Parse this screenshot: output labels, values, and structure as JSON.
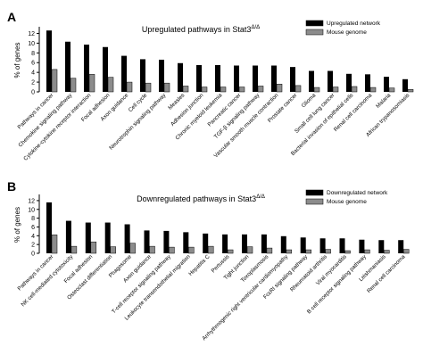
{
  "chart_data": [
    {
      "type": "bar",
      "panel_label": "A",
      "title": "Upregulated pathways in Stat3",
      "title_superscript": "Δ/Δ",
      "ylabel": "% of genes",
      "xlabel": "",
      "ylim": [
        0,
        13
      ],
      "yticks": [
        "0",
        "2",
        "4",
        "6",
        "8",
        "10",
        "12"
      ],
      "legend_position": "top-right",
      "colors": {
        "network": "#000000",
        "genome": "#8c8c8c"
      },
      "categories": [
        "Pathways in cancer",
        "Chemokine signaling pathway",
        "Cytokine-cytokine receptor interaction",
        "Focal adhesion",
        "Axon guidance",
        "Cell cycle",
        "Neurotrophin signaling pathway",
        "Measles",
        "Adhesion junction",
        "Chronic myeloid leukemia",
        "Pancreatic cancer",
        "TGF-β signaling pathway",
        "Vascular smooth muscle contraction",
        "Prostate cancer",
        "Glioma",
        "Small cell lung cancer",
        "Bacterial invasion of epithelial cells",
        "Renal cell carcinoma",
        "Malaria",
        "African trypanosomiasis"
      ],
      "series": [
        {
          "name": "Upregulated network",
          "values": [
            12.6,
            10.3,
            9.7,
            9.2,
            7.4,
            6.7,
            6.6,
            5.9,
            5.5,
            5.5,
            5.4,
            5.4,
            5.4,
            5.1,
            4.3,
            4.3,
            3.7,
            3.6,
            3.1,
            2.6
          ]
        },
        {
          "name": "Mouse genome",
          "values": [
            4.6,
            2.8,
            3.6,
            3.0,
            2.0,
            1.8,
            1.8,
            1.2,
            1.0,
            1.0,
            1.0,
            1.2,
            1.6,
            1.3,
            0.9,
            1.0,
            1.1,
            0.9,
            0.8,
            0.5
          ]
        }
      ]
    },
    {
      "type": "bar",
      "panel_label": "B",
      "title": "Downregulated pathways in Stat3",
      "title_superscript": "Δ/Δ",
      "ylabel": "% of genes",
      "xlabel": "",
      "ylim": [
        0,
        13
      ],
      "yticks": [
        "0",
        "2",
        "4",
        "6",
        "8",
        "10",
        "12"
      ],
      "legend_position": "top-right",
      "colors": {
        "network": "#000000",
        "genome": "#8c8c8c"
      },
      "categories": [
        "Pathways in cancer",
        "NK cell-mediated cytotoxicity",
        "Focal adhesion",
        "Osteoclast differentiation",
        "Phagosome",
        "Axon guidance",
        "T-cell receptor signaling pathway",
        "Leukocyte transendothelial migration",
        "Hepatitis C",
        "Pertussis",
        "Tight junction",
        "Toxoplasmosis",
        "Arrhythmogenic right ventricular cardiomyopathy",
        "FcεRI signaling pathway",
        "Rheumatoid arthritis",
        "Viral myocarditis",
        "B cell receptor signaling pathway",
        "Leishmaniasis",
        "Renal cell carcinoma"
      ],
      "series": [
        {
          "name": "Downregulated network",
          "values": [
            11.6,
            7.4,
            7.0,
            7.0,
            6.6,
            5.2,
            5.1,
            4.8,
            4.5,
            4.3,
            4.3,
            4.3,
            3.9,
            3.6,
            3.4,
            3.4,
            3.1,
            3.0,
            3.0
          ]
        },
        {
          "name": "Mouse genome",
          "values": [
            4.2,
            1.6,
            2.6,
            1.5,
            2.3,
            1.6,
            1.4,
            1.4,
            1.6,
            0.8,
            1.5,
            1.2,
            0.8,
            0.8,
            0.9,
            0.6,
            0.8,
            0.7,
            0.9
          ]
        }
      ]
    }
  ]
}
